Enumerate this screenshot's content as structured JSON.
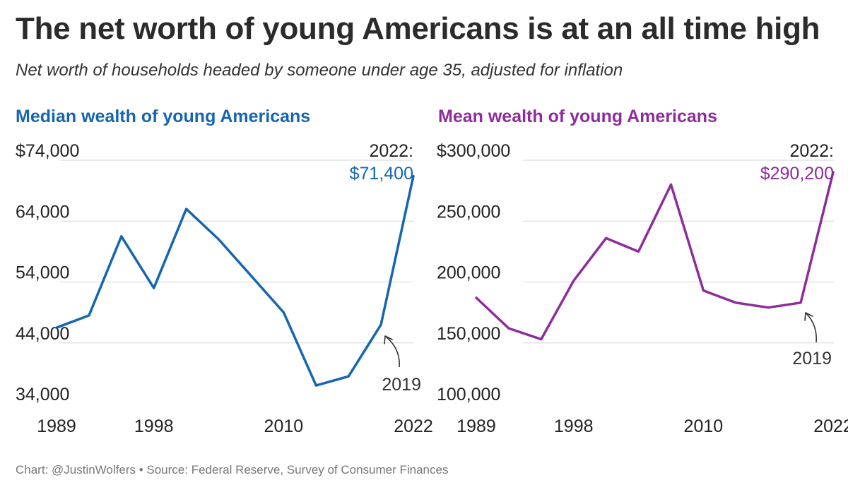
{
  "title": "The net worth of young Americans is at an all time high",
  "subtitle": "Net worth of households headed by someone under age 35, adjusted for inflation",
  "footer": "Chart: @JustinWolfers • Source: Federal Reserve, Survey of Consumer Finances",
  "chart_data": [
    {
      "type": "line",
      "title": "Median wealth of young Americans",
      "color": "#1565b0",
      "x": [
        1989,
        1992,
        1995,
        1998,
        2001,
        2004,
        2007,
        2010,
        2013,
        2016,
        2019,
        2022
      ],
      "values": [
        46500,
        48500,
        61500,
        53000,
        66000,
        61000,
        55000,
        49000,
        37000,
        38500,
        47000,
        71400
      ],
      "ylim": [
        34000,
        74000
      ],
      "yticks": [
        34000,
        44000,
        54000,
        64000,
        74000
      ],
      "ytick_labels": [
        "34,000",
        "44,000",
        "54,000",
        "64,000",
        "$74,000"
      ],
      "xlim": [
        1989,
        2022
      ],
      "xticks": [
        1989,
        1998,
        2010,
        2022
      ],
      "xtick_labels": [
        "1989",
        "1998",
        "2010",
        "2022"
      ],
      "grid": true,
      "end_label": {
        "year": "2022:",
        "value": "$71,400"
      },
      "annotation": {
        "text": "2019",
        "year": 2019
      }
    },
    {
      "type": "line",
      "title": "Mean wealth of young Americans",
      "color": "#8e2c9c",
      "x": [
        1989,
        1992,
        1995,
        1998,
        2001,
        2004,
        2007,
        2010,
        2013,
        2016,
        2019,
        2022
      ],
      "values": [
        187000,
        162000,
        153000,
        201000,
        236000,
        225000,
        280000,
        193000,
        183000,
        179000,
        183000,
        290200
      ],
      "ylim": [
        100000,
        300000
      ],
      "yticks": [
        100000,
        150000,
        200000,
        250000,
        300000
      ],
      "ytick_labels": [
        "100,000",
        "150,000",
        "200,000",
        "250,000",
        "$300,000"
      ],
      "xlim": [
        1989,
        2022
      ],
      "xticks": [
        1989,
        1998,
        2010,
        2022
      ],
      "xtick_labels": [
        "1989",
        "1998",
        "2010",
        "2022"
      ],
      "grid": true,
      "end_label": {
        "year": "2022:",
        "value": "$290,200"
      },
      "annotation": {
        "text": "2019",
        "year": 2019
      }
    }
  ]
}
